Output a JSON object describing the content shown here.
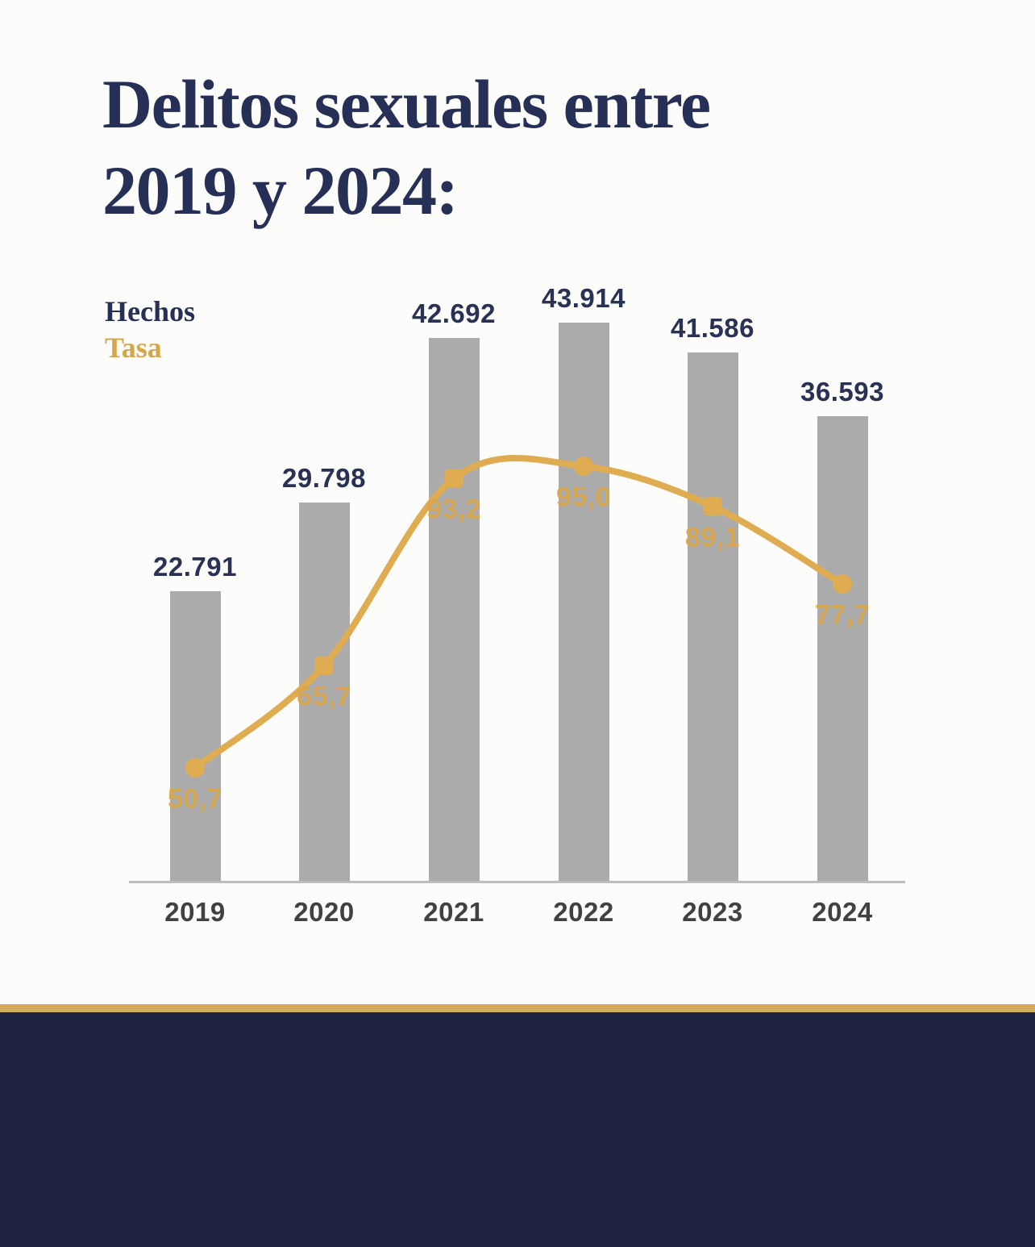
{
  "page": {
    "background": "#FCFCFB"
  },
  "header": {
    "title_line_1": "Delitos sexuales entre",
    "title_line_2": "2019 y 2024:",
    "title_color": "#262F55"
  },
  "legend": {
    "items": [
      {
        "label": "Hechos",
        "color": "#262F55"
      },
      {
        "label": "Tasa",
        "color": "#D5A64A"
      }
    ]
  },
  "chart_data": {
    "type": "bar",
    "subtype": "bar+line combo",
    "title": "Delitos sexuales entre 2019 y 2024:",
    "categories": [
      "2019",
      "2020",
      "2021",
      "2022",
      "2023",
      "2024"
    ],
    "series": [
      {
        "name": "Hechos",
        "type": "bar",
        "color": "#ABABAB",
        "values": [
          22791,
          29798,
          42692,
          43914,
          41586,
          36593
        ],
        "value_labels": [
          "22.791",
          "29.798",
          "42.692",
          "43.914",
          "41.586",
          "36.593"
        ],
        "label_color": "#293154"
      },
      {
        "name": "Tasa",
        "type": "line",
        "color": "#DFAC52",
        "values": [
          50.7,
          65.7,
          93.2,
          95.0,
          89.1,
          77.7
        ],
        "value_labels": [
          "50,7",
          "65,7",
          "93,2",
          "95,0",
          "89,1",
          "77,7"
        ],
        "label_color": "#D9A74B",
        "marker_shapes": [
          "circle",
          "square",
          "square",
          "circle",
          "square",
          "circle"
        ]
      }
    ],
    "legend_position": "top-left",
    "grid": false,
    "x_axis": {
      "label_color": "#414141",
      "line_color": "#BDBDBD"
    },
    "y_axis": {
      "visible": false,
      "bar_range_implied": [
        0,
        43914
      ],
      "rate_range_implied": [
        50.7,
        95.0
      ]
    }
  },
  "footer": {
    "divider_color": "#D4AC55",
    "background": "#1E2340"
  }
}
